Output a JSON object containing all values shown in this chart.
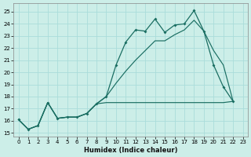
{
  "xlabel": "Humidex (Indice chaleur)",
  "bg_color": "#cceee8",
  "grid_color": "#aaddda",
  "line_color": "#1a6e62",
  "xlim": [
    -0.5,
    23.5
  ],
  "ylim": [
    14.7,
    25.7
  ],
  "yticks": [
    15,
    16,
    17,
    18,
    19,
    20,
    21,
    22,
    23,
    24,
    25
  ],
  "xticks": [
    0,
    1,
    2,
    3,
    4,
    5,
    6,
    7,
    8,
    9,
    10,
    11,
    12,
    13,
    14,
    15,
    16,
    17,
    18,
    19,
    20,
    21,
    22,
    23
  ],
  "main_y": [
    16.1,
    15.3,
    15.6,
    17.5,
    16.2,
    16.3,
    16.3,
    16.6,
    17.4,
    18.0,
    20.6,
    22.5,
    23.5,
    23.4,
    24.4,
    23.3,
    23.9,
    24.0,
    25.1,
    23.4,
    20.6,
    18.8,
    17.6
  ],
  "flat_y": [
    16.1,
    15.3,
    15.6,
    17.5,
    16.2,
    16.3,
    16.3,
    16.6,
    17.4,
    17.5,
    17.5,
    17.5,
    17.5,
    17.5,
    17.5,
    17.5,
    17.5,
    17.5,
    17.5,
    17.5,
    17.5,
    17.5,
    17.6
  ],
  "trend_y": [
    16.1,
    15.3,
    15.6,
    17.5,
    16.2,
    16.3,
    16.3,
    16.6,
    17.4,
    18.0,
    19.1,
    20.1,
    21.0,
    21.8,
    22.6,
    22.6,
    23.1,
    23.5,
    24.3,
    23.4,
    21.8,
    20.6,
    17.6
  ]
}
